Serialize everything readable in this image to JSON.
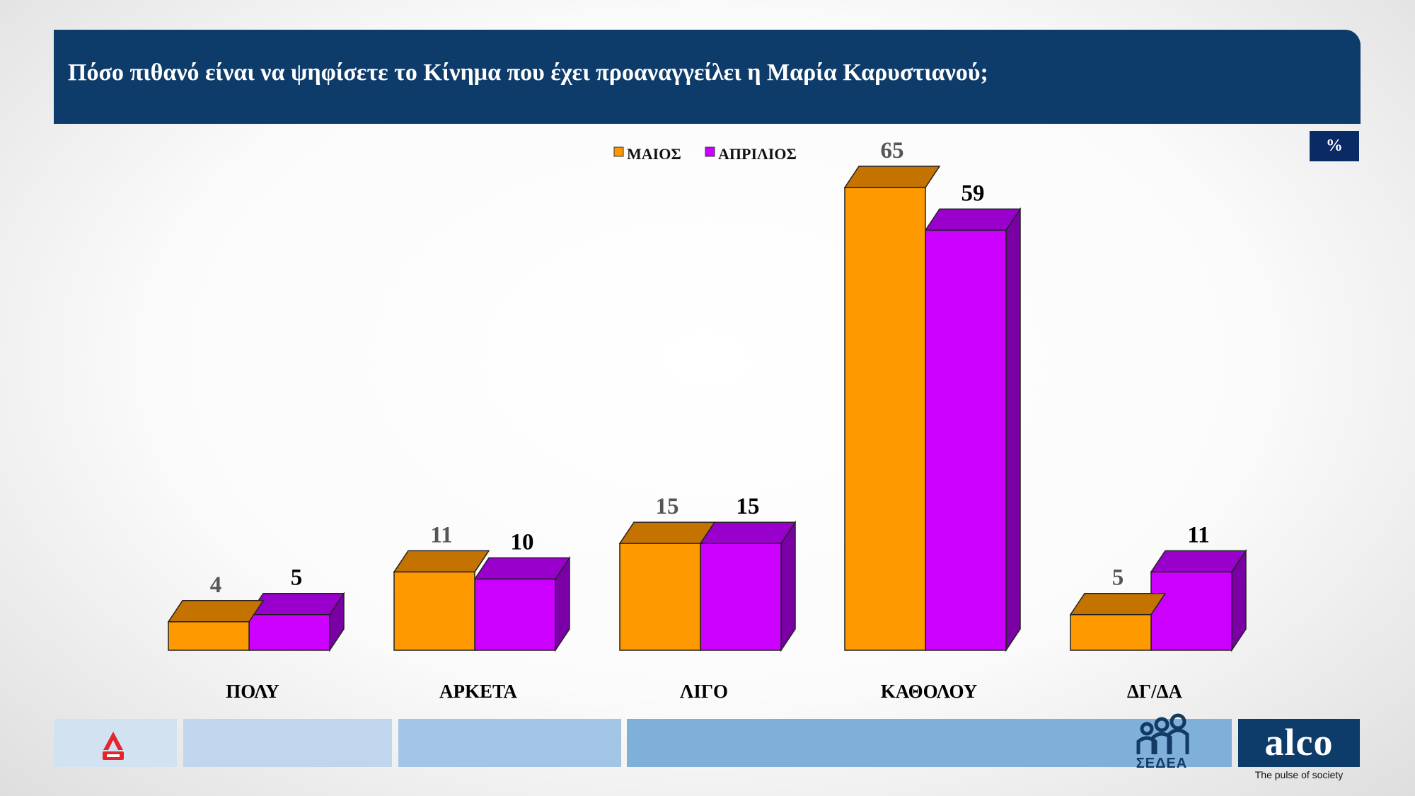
{
  "header": {
    "title": "Πόσο πιθανό είναι να ψηφίσετε το Κίνημα που έχει προαναγγείλει η Μαρία Καρυστιανού;",
    "unit_badge": "%"
  },
  "chart_data": {
    "type": "bar",
    "categories": [
      "ΠΟΛΥ",
      "ΑΡΚΕΤΑ",
      "ΛΙΓΟ",
      "ΚΑΘΟΛΟΥ",
      "ΔΓ/ΔΑ"
    ],
    "series": [
      {
        "name": "ΜΑΙΟΣ",
        "values": [
          4,
          11,
          15,
          65,
          5
        ],
        "color": "#ff9900"
      },
      {
        "name": "ΑΠΡΙΛΙΟΣ",
        "values": [
          5,
          10,
          15,
          59,
          11
        ],
        "color": "#cc00ff"
      }
    ],
    "legend_placement": "top-center",
    "grid": false,
    "ylim": [
      0,
      65
    ]
  },
  "footer": {
    "sedea_label": "ΣΕΔΕΑ",
    "brand": "alco",
    "tagline": "The pulse of society"
  },
  "colors": {
    "header_bg": "#0e3c6a",
    "may_front": "#ff9900",
    "may_top": "#c47300",
    "april_front": "#cc00ff",
    "april_top": "#9900cc",
    "april_side": "#7a00a6"
  },
  "icons": {
    "alpha_news": "alpha-news-logo",
    "sedea": "sedea-people-logo"
  }
}
